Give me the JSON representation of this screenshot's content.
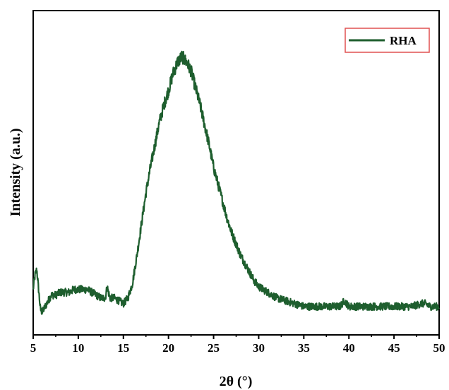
{
  "chart_data": {
    "type": "line",
    "title": "",
    "xlabel": "2θ (°)",
    "ylabel": "Intensity (a.u.)",
    "xlim": [
      5,
      50
    ],
    "xticks": [
      5,
      10,
      15,
      20,
      25,
      30,
      35,
      40,
      45,
      50
    ],
    "yticks_shown": false,
    "ylim": [
      0,
      1
    ],
    "grid": false,
    "legend_position": "top-right",
    "series": [
      {
        "name": "RHA",
        "color": "#1e5e2e",
        "x": [
          5.0,
          5.2,
          5.4,
          5.6,
          5.8,
          6.0,
          6.5,
          7.0,
          7.5,
          8.0,
          8.5,
          9.0,
          9.5,
          10.0,
          10.5,
          11.0,
          11.5,
          12.0,
          12.5,
          13.0,
          13.2,
          13.5,
          14.0,
          14.5,
          15.0,
          15.5,
          16.0,
          16.5,
          17.0,
          17.5,
          18.0,
          18.5,
          19.0,
          19.5,
          20.0,
          20.5,
          21.0,
          21.5,
          22.0,
          22.5,
          23.0,
          23.5,
          24.0,
          24.5,
          25.0,
          25.5,
          26.0,
          26.5,
          27.0,
          27.5,
          28.0,
          28.5,
          29.0,
          29.5,
          30.0,
          31.0,
          32.0,
          33.0,
          34.0,
          35.0,
          36.0,
          37.0,
          38.0,
          39.0,
          39.5,
          40.0,
          41.0,
          42.0,
          43.0,
          44.0,
          45.0,
          46.0,
          47.0,
          48.0,
          48.5,
          49.0,
          50.0
        ],
        "y": [
          0.15,
          0.2,
          0.22,
          0.15,
          0.08,
          0.07,
          0.1,
          0.13,
          0.13,
          0.14,
          0.14,
          0.14,
          0.15,
          0.15,
          0.15,
          0.15,
          0.14,
          0.13,
          0.12,
          0.12,
          0.16,
          0.12,
          0.12,
          0.11,
          0.1,
          0.12,
          0.17,
          0.27,
          0.38,
          0.49,
          0.58,
          0.66,
          0.74,
          0.8,
          0.85,
          0.91,
          0.95,
          0.97,
          0.95,
          0.92,
          0.86,
          0.8,
          0.73,
          0.66,
          0.58,
          0.52,
          0.46,
          0.4,
          0.35,
          0.31,
          0.27,
          0.24,
          0.21,
          0.18,
          0.16,
          0.14,
          0.12,
          0.11,
          0.1,
          0.09,
          0.09,
          0.09,
          0.09,
          0.09,
          0.11,
          0.09,
          0.09,
          0.09,
          0.09,
          0.09,
          0.09,
          0.09,
          0.09,
          0.1,
          0.1,
          0.09,
          0.09
        ]
      }
    ]
  }
}
